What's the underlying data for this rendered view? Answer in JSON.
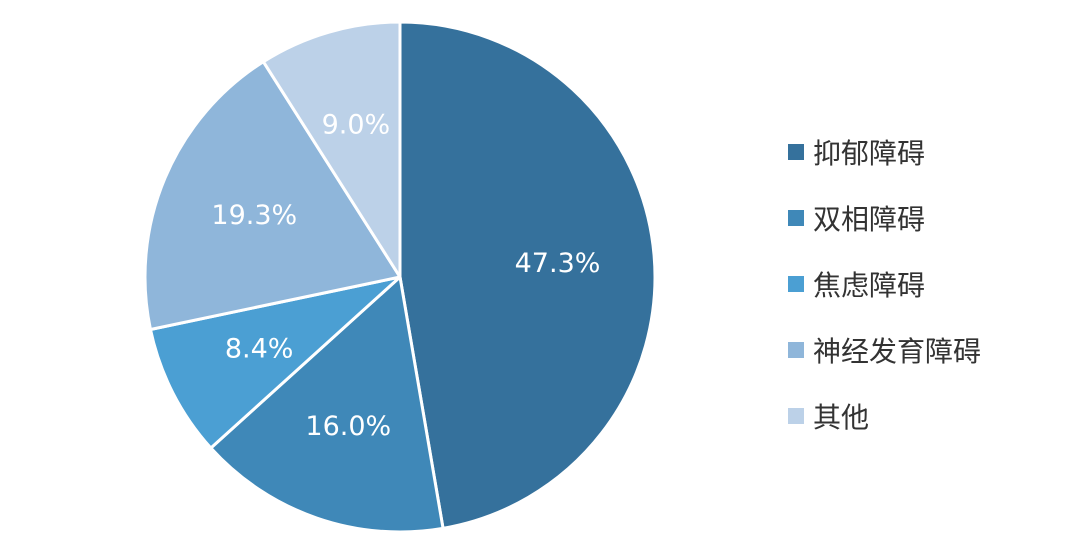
{
  "chart_data": {
    "type": "pie",
    "title": "",
    "start_angle_deg": 0,
    "direction": "clockwise",
    "legend_position": "right",
    "slices": [
      {
        "name": "抑郁障碍",
        "value": 47.3,
        "label": "47.3%",
        "color": "#35719c"
      },
      {
        "name": "双相障碍",
        "value": 16.0,
        "label": "16.0%",
        "color": "#3f88b8"
      },
      {
        "name": "焦虑障碍",
        "value": 8.4,
        "label": "8.4%",
        "color": "#4b9fd3"
      },
      {
        "name": "神经发育障碍",
        "value": 19.3,
        "label": "19.3%",
        "color": "#8fb6da"
      },
      {
        "name": "其他",
        "value": 9.0,
        "label": "9.0%",
        "color": "#bcd1e8"
      }
    ]
  }
}
